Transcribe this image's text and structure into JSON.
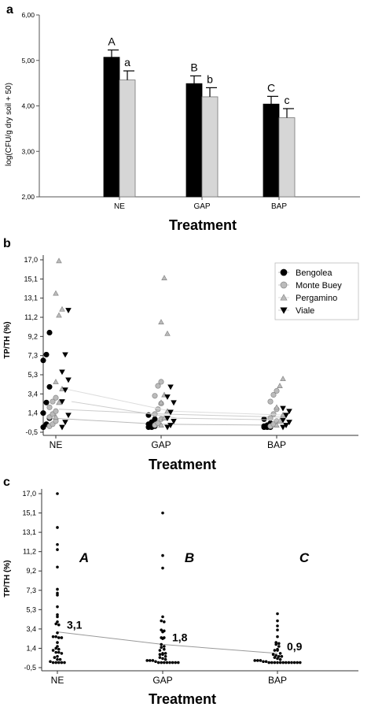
{
  "chart_data": [
    {
      "panel_label": "a",
      "type": "bar",
      "xlabel": "Treatment",
      "ylabel": "log(CFU/g dry soil + 50)",
      "ylim": [
        2.0,
        6.0
      ],
      "yticks": [
        "2,00",
        "3,00",
        "4,00",
        "5,00",
        "6,00"
      ],
      "categories": [
        "NE",
        "GAP",
        "BAP"
      ],
      "series": [
        {
          "color": "#000000",
          "values": [
            5.07,
            4.49,
            4.04
          ],
          "errors": [
            0.16,
            0.17,
            0.17
          ],
          "letters": [
            "A",
            "B",
            "C"
          ]
        },
        {
          "color": "#d6d6d6",
          "values": [
            4.57,
            4.2,
            3.74
          ],
          "errors": [
            0.2,
            0.2,
            0.2
          ],
          "letters": [
            "a",
            "b",
            "c"
          ]
        }
      ]
    },
    {
      "panel_label": "b",
      "type": "scatter",
      "xlabel": "Treatment",
      "ylabel": "TP/TH (%)",
      "categories": [
        "NE",
        "GAP",
        "BAP"
      ],
      "yticks": [
        "-0,5",
        "1,4",
        "3,4",
        "5,3",
        "7,3",
        "9,2",
        "11,2",
        "13,1",
        "15,1",
        "17,0"
      ],
      "legend_position": "top-right",
      "series": [
        {
          "name": "Bengolea",
          "marker": "circle",
          "fill": "#000000",
          "line_color": "#bbbbbb",
          "means": [
            0.9,
            0.3,
            0.2
          ],
          "values": [
            [
              0.0,
              0.3,
              0.9,
              1.4,
              2.5,
              4.1,
              6.8,
              7.4,
              9.6
            ],
            [
              0.0,
              0.0,
              0.1,
              0.3,
              0.5,
              0.8,
              1.2
            ],
            [
              0.0,
              0.0,
              0.0,
              0.1,
              0.2,
              0.4,
              0.8
            ]
          ]
        },
        {
          "name": "Monte Buey",
          "marker": "circle",
          "fill": "#bbbbbb",
          "line_color": "#cccccc",
          "means": [
            1.8,
            1.3,
            1.0
          ],
          "values": [
            [
              0.1,
              0.3,
              0.6,
              1.0,
              1.3,
              1.6,
              2.0,
              2.6,
              3.0
            ],
            [
              0.2,
              0.4,
              0.8,
              1.3,
              1.8,
              2.4,
              3.2,
              4.2,
              4.6
            ],
            [
              0.1,
              0.3,
              0.6,
              0.9,
              1.3,
              1.8,
              2.6,
              3.3,
              3.7
            ]
          ]
        },
        {
          "name": "Pergamino",
          "marker": "triangle-up",
          "fill": "#bbbbbb",
          "line_color": "#dddddd",
          "means": [
            3.9,
            1.6,
            1.2
          ],
          "values": [
            [
              1.0,
              2.5,
              3.9,
              4.6,
              11.4,
              12.0,
              13.6,
              16.9
            ],
            [
              0.2,
              0.9,
              1.6,
              2.5,
              3.3,
              9.5,
              10.7,
              15.2
            ],
            [
              0.2,
              0.6,
              1.2,
              2.0,
              4.2,
              4.9
            ]
          ]
        },
        {
          "name": "Viale",
          "marker": "triangle-down",
          "fill": "#000000",
          "line_color": "#cccccc",
          "means": [
            2.6,
            0.9,
            0.7
          ],
          "values": [
            [
              0.0,
              0.5,
              1.2,
              2.6,
              3.8,
              4.8,
              5.6,
              7.4,
              11.9
            ],
            [
              0.0,
              0.2,
              0.6,
              0.9,
              1.5,
              2.5,
              3.1,
              4.1
            ],
            [
              0.0,
              0.2,
              0.5,
              0.7,
              1.2,
              1.6,
              1.9
            ]
          ]
        }
      ]
    },
    {
      "panel_label": "c",
      "type": "scatter",
      "xlabel": "Treatment",
      "ylabel": "TP/TH (%)",
      "categories": [
        "NE",
        "GAP",
        "BAP"
      ],
      "yticks": [
        "-0,5",
        "1,4",
        "3,4",
        "5,3",
        "7,3",
        "9,2",
        "11,2",
        "13,1",
        "15,1",
        "17,0"
      ],
      "means": [
        3.1,
        1.8,
        0.9
      ],
      "mean_labels": [
        "3,1",
        "1,8",
        "0,9"
      ],
      "letters": [
        "A",
        "B",
        "C"
      ],
      "values": [
        [
          17.0,
          13.6,
          11.9,
          11.4,
          9.6,
          7.4,
          7.0,
          6.8,
          5.6,
          4.8,
          4.6,
          4.1,
          3.9,
          3.8,
          3.0,
          2.6,
          2.6,
          2.5,
          2.5,
          2.0,
          1.6,
          1.4,
          1.3,
          1.2,
          1.0,
          1.0,
          0.9,
          0.6,
          0.5,
          0.3,
          0.3,
          0.1,
          0.0,
          0.0,
          0.0,
          0.0,
          0.0
        ],
        [
          15.1,
          10.8,
          9.5,
          4.6,
          4.2,
          4.1,
          3.3,
          3.2,
          3.1,
          2.5,
          2.5,
          2.4,
          1.8,
          1.6,
          1.5,
          1.3,
          1.2,
          0.9,
          0.9,
          0.8,
          0.8,
          0.6,
          0.5,
          0.4,
          0.3,
          0.2,
          0.2,
          0.2,
          0.1,
          0.0,
          0.0,
          0.0,
          0.0,
          0.0,
          0.0,
          0.0,
          0.0
        ],
        [
          4.9,
          4.2,
          3.7,
          3.3,
          2.6,
          2.0,
          1.9,
          1.8,
          1.6,
          1.3,
          1.2,
          1.2,
          0.9,
          0.8,
          0.7,
          0.6,
          0.6,
          0.5,
          0.4,
          0.3,
          0.2,
          0.2,
          0.2,
          0.1,
          0.1,
          0.0,
          0.0,
          0.0,
          0.0,
          0.0,
          0.0,
          0.0,
          0.0,
          0.0,
          0.0,
          0.0,
          0.0
        ]
      ]
    }
  ]
}
